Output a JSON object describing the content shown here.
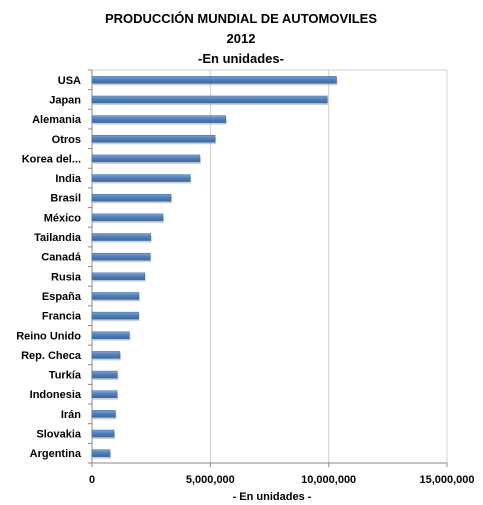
{
  "chart_data": {
    "type": "bar",
    "orientation": "horizontal",
    "title": "PRODUCCIÓN MUNDIAL DE AUTOMOVILES",
    "subtitle": "2012",
    "subtitle2": "-En unidades-",
    "xlabel": "- En  unidades -",
    "ylabel": "",
    "xlim": [
      0,
      15000000
    ],
    "xticks": [
      "0",
      "5,000,000",
      "10,000,000",
      "15,000,000"
    ],
    "grid": true,
    "categories": [
      "USA",
      "Japan",
      "Alemania",
      "Otros",
      "Korea del...",
      "India",
      "Brasil",
      "México",
      "Tailandia",
      "Canadá",
      "Rusia",
      "España",
      "Francia",
      "Reino Unido",
      "Rep. Checa",
      "Turkía",
      "Indonesia",
      "Irán",
      "Slovakia",
      "Argentina"
    ],
    "values": [
      10330000,
      9940000,
      5650000,
      5200000,
      4560000,
      4150000,
      3340000,
      3000000,
      2480000,
      2460000,
      2230000,
      1980000,
      1970000,
      1580000,
      1180000,
      1070000,
      1060000,
      990000,
      930000,
      760000
    ],
    "colors": {
      "bar": "#4f81bd",
      "bar_dark": "#3a6aa3",
      "grid": "#d0d0d0",
      "axis": "#888888"
    }
  }
}
